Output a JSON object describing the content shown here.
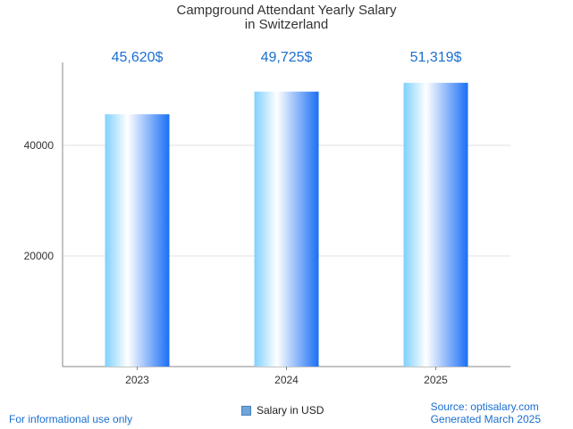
{
  "chart_data": {
    "type": "bar",
    "title_line1": "Campground Attendant Yearly Salary",
    "title_line2": "in Switzerland",
    "categories": [
      "2023",
      "2024",
      "2025"
    ],
    "series": [
      {
        "name": "Salary in USD",
        "values": [
          45620,
          49725,
          51319
        ],
        "labels": [
          "45,620$",
          "49,725$",
          "51,319$"
        ]
      }
    ],
    "y_ticks": [
      20000,
      40000
    ],
    "ylim": [
      0,
      55000
    ],
    "grid": true,
    "legend_position": "bottom-center",
    "colors": {
      "bar_dark": "#1a6ff5",
      "bar_light": "#ffffff",
      "bar_mid": "#7fd0ff",
      "label": "#1a6fd1"
    }
  },
  "footer": {
    "disclaimer": "For informational use only",
    "source": "Source: optisalary.com",
    "generated": "Generated March 2025"
  }
}
